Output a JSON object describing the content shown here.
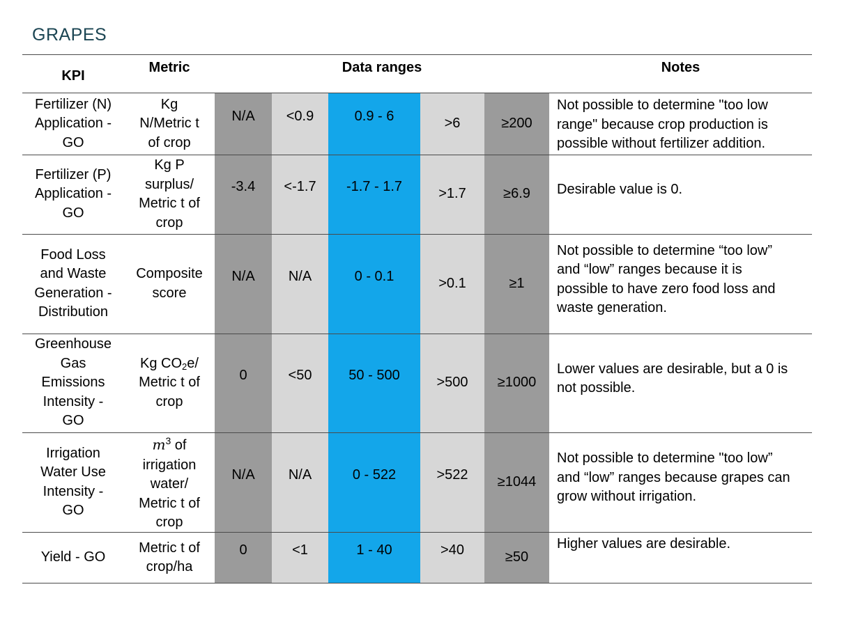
{
  "title": "GRAPES",
  "headers": {
    "kpi": "KPI",
    "metric": "Metric",
    "ranges": "Data ranges",
    "notes": "Notes"
  },
  "colors": {
    "dark_gray": "#9b9b9b",
    "light_gray": "#d7d7d7",
    "blue": "#13a6ea",
    "title": "#1b4553"
  },
  "rows": [
    {
      "kpi": [
        "Fertilizer (N)",
        "Application -",
        "GO"
      ],
      "metric": [
        "Kg",
        "N/Metric t",
        "of crop"
      ],
      "ranges": [
        "N/A",
        "<0.9",
        "0.9 - 6",
        ">6",
        "≥200"
      ],
      "notes": [
        "Not possible to determine \"too low",
        "range\" because crop production is",
        "possible without fertilizer addition."
      ]
    },
    {
      "kpi": [
        "Fertilizer (P)",
        "Application -",
        "GO"
      ],
      "metric": [
        "Kg P",
        "surplus/",
        "Metric t of",
        "crop"
      ],
      "ranges": [
        "-3.4",
        "<-1.7",
        "-1.7 - 1.7",
        ">1.7",
        "≥6.9"
      ],
      "notes": [
        "Desirable value is 0."
      ]
    },
    {
      "kpi": [
        "Food Loss",
        "and Waste",
        "Generation -",
        "Distribution"
      ],
      "metric": [
        "Composite",
        "score"
      ],
      "ranges": [
        "N/A",
        "N/A",
        "0 - 0.1",
        ">0.1",
        "≥1"
      ],
      "notes": [
        "Not possible to determine “too low”",
        "and “low” ranges because it is",
        "possible to have zero food loss and",
        "waste generation."
      ]
    },
    {
      "kpi": [
        "Greenhouse",
        "Gas",
        "Emissions",
        "Intensity -",
        "GO"
      ],
      "metric": [
        "Kg CO",
        "2",
        "e/",
        "Metric t of",
        "crop"
      ],
      "ranges": [
        "0",
        "<50",
        "50 - 500",
        ">500",
        "≥1000"
      ],
      "notes": [
        "Lower values are desirable, but a 0 is",
        "not possible."
      ]
    },
    {
      "kpi": [
        "Irrigation",
        "Water Use",
        "Intensity -",
        "GO"
      ],
      "metric": [
        "m",
        "3",
        " of",
        "irrigation",
        "water/",
        "Metric t of",
        "crop"
      ],
      "ranges": [
        "N/A",
        "N/A",
        "0 - 522",
        ">522",
        "≥1044"
      ],
      "notes": [
        "Not possible to determine \"too low”",
        "and “low” ranges because grapes can",
        "grow without irrigation."
      ]
    },
    {
      "kpi": [
        "Yield - GO"
      ],
      "metric": [
        "Metric t of",
        "crop/ha"
      ],
      "ranges": [
        "0",
        "<1",
        "1 - 40",
        ">40",
        "≥50"
      ],
      "notes": [
        "Higher values are desirable."
      ]
    }
  ]
}
